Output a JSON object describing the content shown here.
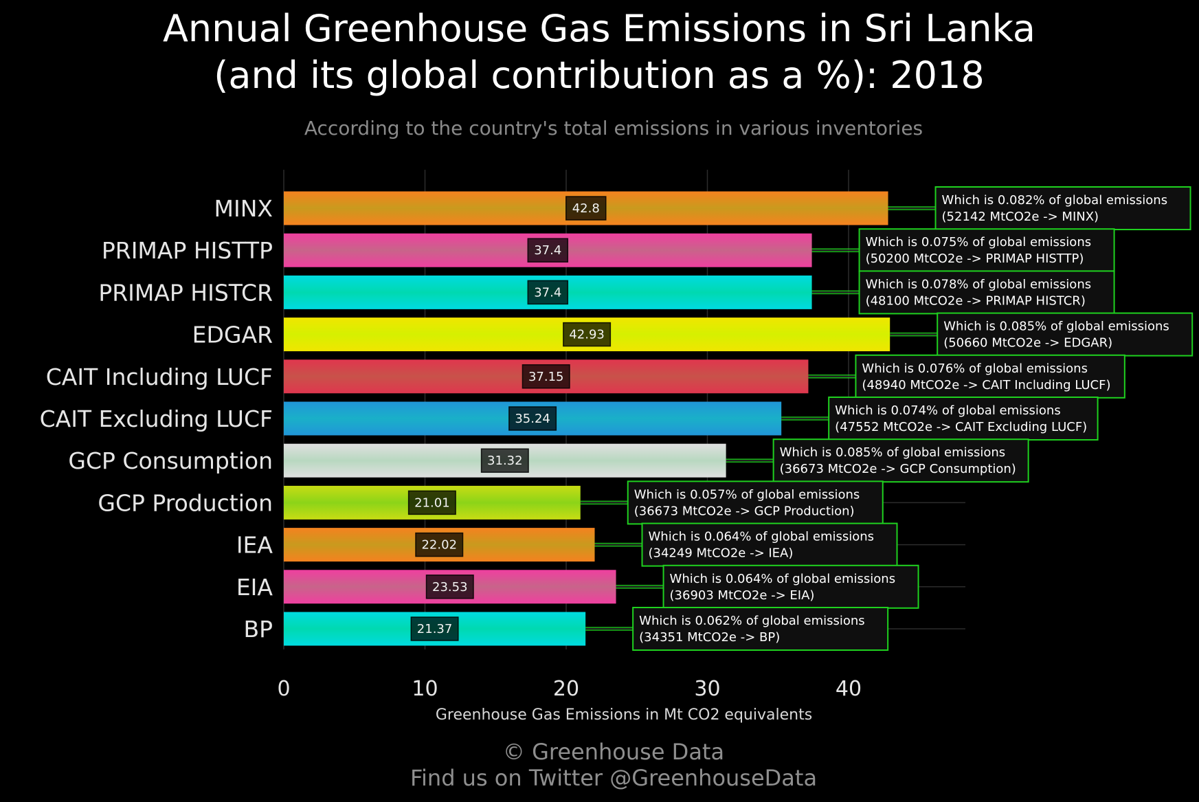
{
  "chart_data": {
    "type": "bar",
    "orientation": "horizontal",
    "title_line1": "Annual Greenhouse Gas Emissions in Sri Lanka",
    "title_line2": "(and its global contribution as a %): 2018",
    "subtitle": "According to the country's total emissions in various inventories",
    "xlabel": "Greenhouse Gas Emissions in Mt CO2 equivalents",
    "ylabel": "",
    "xlim": [
      0,
      48.5
    ],
    "xticks": [
      "0",
      "10",
      "20",
      "30",
      "40"
    ],
    "grid": true,
    "categories": [
      "MINX",
      "PRIMAP HISTTP",
      "PRIMAP HISTCR",
      "EDGAR",
      "CAIT Including LUCF",
      "CAIT Excluding LUCF",
      "GCP Consumption",
      "GCP Production",
      "IEA",
      "EIA",
      "BP"
    ],
    "values": [
      42.8,
      37.4,
      37.4,
      42.93,
      37.15,
      35.24,
      31.32,
      21.01,
      22.02,
      23.53,
      21.37
    ],
    "value_labels": [
      "42.8",
      "37.4",
      "37.4",
      "42.93",
      "37.15",
      "35.24",
      "31.32",
      "21.01",
      "22.02",
      "23.53",
      "21.37"
    ],
    "bar_colors": [
      [
        "#f5821f",
        "#c99a1e"
      ],
      [
        "#f03fa0",
        "#c8648a"
      ],
      [
        "#00dbe0",
        "#00d9b0"
      ],
      [
        "#f0e600",
        "#d6f000"
      ],
      [
        "#e0364e",
        "#c8524a"
      ],
      [
        "#2196d8",
        "#1ab0c8"
      ],
      [
        "#e0e0e0",
        "#b8d8c0"
      ],
      [
        "#c8dc14",
        "#8cd418"
      ],
      [
        "#f5821f",
        "#c99a1e"
      ],
      [
        "#f03fa0",
        "#c8648a"
      ],
      [
        "#00dbe0",
        "#00d9b0"
      ]
    ],
    "annotation_line1": [
      "Which is 0.082% of global emissions",
      "Which is 0.075% of global emissions",
      "Which is 0.078% of global emissions",
      "Which is 0.085% of global emissions",
      "Which is 0.076% of global emissions",
      "Which is 0.074% of global emissions",
      "Which is 0.085% of global emissions",
      "Which is 0.057% of global emissions",
      "Which is 0.064% of global emissions",
      "Which is 0.064% of global emissions",
      "Which is 0.062% of global emissions"
    ],
    "annotation_line2": [
      "(52142 MtCO2e -> MINX)",
      "(50200 MtCO2e -> PRIMAP HISTTP)",
      "(48100 MtCO2e -> PRIMAP HISTCR)",
      "(50660 MtCO2e -> EDGAR)",
      "(48940 MtCO2e -> CAIT Including LUCF)",
      "(47552 MtCO2e -> CAIT Excluding LUCF)",
      "(36673 MtCO2e -> GCP Consumption)",
      "(36673 MtCO2e -> GCP Production)",
      "(34249 MtCO2e -> IEA)",
      "(36903 MtCO2e -> EIA)",
      "(34351 MtCO2e -> BP)"
    ],
    "annotation_border_color": "#1fd11f"
  },
  "credits": {
    "line1": "© Greenhouse Data",
    "line2": "Find us on Twitter @GreenhouseData"
  }
}
